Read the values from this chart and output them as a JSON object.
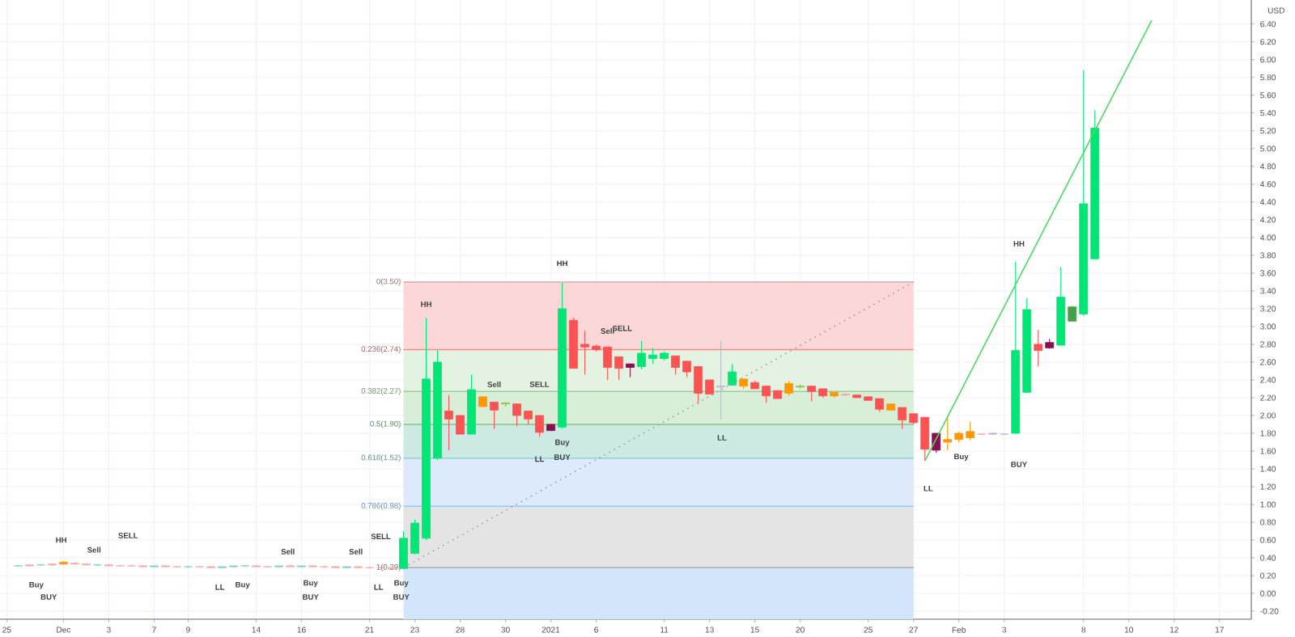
{
  "chart_data": {
    "type": "candlestick",
    "ylabel": "USD",
    "grid": true,
    "ylim": [
      -0.29,
      6.67
    ],
    "yticks": [
      {
        "value": -0.2,
        "label": "-0.20"
      },
      {
        "value": 0,
        "label": "0.00"
      },
      {
        "value": 0.2,
        "label": "0.20"
      },
      {
        "value": 0.4,
        "label": "0.40"
      },
      {
        "value": 0.6,
        "label": "0.60"
      },
      {
        "value": 0.8,
        "label": "0.80"
      },
      {
        "value": 1.0,
        "label": "1.00"
      },
      {
        "value": 1.2,
        "label": "1.20"
      },
      {
        "value": 1.4,
        "label": "1.40"
      },
      {
        "value": 1.6,
        "label": "1.60"
      },
      {
        "value": 1.8,
        "label": "1.80"
      },
      {
        "value": 2.0,
        "label": "2.00"
      },
      {
        "value": 2.2,
        "label": "2.20"
      },
      {
        "value": 2.4,
        "label": "2.40"
      },
      {
        "value": 2.6,
        "label": "2.60"
      },
      {
        "value": 2.8,
        "label": "2.80"
      },
      {
        "value": 3.0,
        "label": "3.00"
      },
      {
        "value": 3.2,
        "label": "3.20"
      },
      {
        "value": 3.4,
        "label": "3.40"
      },
      {
        "value": 3.6,
        "label": "3.60"
      },
      {
        "value": 3.8,
        "label": "3.80"
      },
      {
        "value": 4.0,
        "label": "4.00"
      },
      {
        "value": 4.2,
        "label": "4.20"
      },
      {
        "value": 4.4,
        "label": "4.40"
      },
      {
        "value": 4.6,
        "label": "4.60"
      },
      {
        "value": 4.8,
        "label": "4.80"
      },
      {
        "value": 5.0,
        "label": "5.00"
      },
      {
        "value": 5.2,
        "label": "5.20"
      },
      {
        "value": 5.4,
        "label": "5.40"
      },
      {
        "value": 5.6,
        "label": "5.60"
      },
      {
        "value": 5.8,
        "label": "5.80"
      },
      {
        "value": 6.0,
        "label": "6.00"
      },
      {
        "value": 6.2,
        "label": "6.20"
      },
      {
        "value": 6.4,
        "label": "6.40"
      }
    ],
    "categories": [
      "25",
      null,
      null,
      null,
      null,
      "Dec",
      null,
      null,
      null,
      "3",
      null,
      null,
      null,
      "7",
      null,
      null,
      "9",
      null,
      null,
      null,
      null,
      null,
      "14",
      null,
      null,
      null,
      "16",
      null,
      null,
      null,
      null,
      null,
      "21",
      null,
      null,
      null,
      "23",
      null,
      null,
      null,
      "28",
      null,
      null,
      null,
      "30",
      null,
      null,
      null,
      "2021",
      null,
      null,
      null,
      "6",
      null,
      null,
      null,
      null,
      null,
      "11",
      null,
      null,
      null,
      "13",
      null,
      null,
      null,
      "15",
      null,
      null,
      null,
      "20",
      null,
      null,
      null,
      null,
      null,
      "25",
      null,
      null,
      null,
      "27",
      null,
      null,
      null,
      "Feb",
      null,
      null,
      null,
      "3",
      null,
      null,
      null,
      null,
      null,
      null,
      "8",
      null,
      null,
      null,
      "10",
      null,
      null,
      null,
      "12",
      null,
      null,
      null,
      "17",
      null,
      null
    ],
    "ohlc": [
      null,
      [
        0.31,
        0.32,
        0.3,
        0.31
      ],
      [
        0.31,
        0.32,
        0.3,
        0.32
      ],
      [
        0.32,
        0.33,
        0.31,
        0.32
      ],
      [
        0.32,
        0.33,
        0.31,
        0.33
      ],
      [
        0.33,
        0.36,
        0.32,
        0.35
      ],
      [
        0.34,
        0.35,
        0.32,
        0.33
      ],
      [
        0.33,
        0.34,
        0.32,
        0.32
      ],
      [
        0.32,
        0.33,
        0.31,
        0.32
      ],
      [
        0.32,
        0.33,
        0.31,
        0.31
      ],
      [
        0.31,
        0.32,
        0.3,
        0.31
      ],
      [
        0.31,
        0.32,
        0.3,
        0.31
      ],
      [
        0.31,
        0.32,
        0.3,
        0.3
      ],
      [
        0.3,
        0.31,
        0.29,
        0.31
      ],
      [
        0.31,
        0.32,
        0.3,
        0.3
      ],
      [
        0.3,
        0.31,
        0.29,
        0.3
      ],
      [
        0.3,
        0.31,
        0.29,
        0.3
      ],
      [
        0.3,
        0.31,
        0.29,
        0.3
      ],
      [
        0.3,
        0.31,
        0.29,
        0.29
      ],
      [
        0.29,
        0.3,
        0.28,
        0.3
      ],
      [
        0.3,
        0.31,
        0.29,
        0.31
      ],
      [
        0.31,
        0.32,
        0.3,
        0.31
      ],
      [
        0.31,
        0.32,
        0.3,
        0.3
      ],
      [
        0.3,
        0.31,
        0.29,
        0.3
      ],
      [
        0.3,
        0.31,
        0.29,
        0.31
      ],
      [
        0.31,
        0.32,
        0.3,
        0.3
      ],
      [
        0.3,
        0.31,
        0.29,
        0.31
      ],
      [
        0.31,
        0.32,
        0.3,
        0.3
      ],
      [
        0.3,
        0.31,
        0.29,
        0.3
      ],
      [
        0.3,
        0.31,
        0.29,
        0.29
      ],
      [
        0.29,
        0.3,
        0.28,
        0.3
      ],
      [
        0.3,
        0.31,
        0.29,
        0.29
      ],
      [
        0.29,
        0.3,
        0.28,
        0.29
      ],
      [
        0.29,
        0.3,
        0.28,
        0.29
      ],
      [
        0.29,
        0.3,
        0.27,
        0.28
      ],
      [
        0.28,
        0.7,
        0.27,
        0.62
      ],
      [
        0.45,
        0.83,
        0.44,
        0.79
      ],
      [
        0.62,
        3.1,
        0.6,
        2.41
      ],
      [
        1.52,
        2.73,
        1.5,
        2.6
      ],
      [
        2.05,
        2.23,
        1.61,
        1.96
      ],
      [
        2.0,
        2.0,
        1.79,
        1.79
      ],
      [
        1.79,
        2.46,
        1.79,
        2.29
      ],
      [
        2.21,
        2.21,
        2.1,
        2.1
      ],
      [
        2.15,
        2.15,
        1.85,
        2.06
      ],
      [
        2.13,
        2.15,
        2.1,
        2.14
      ],
      [
        2.13,
        2.13,
        1.88,
        2.0
      ],
      [
        2.05,
        2.05,
        1.9,
        1.96
      ],
      [
        2.0,
        2.0,
        1.76,
        1.81
      ],
      [
        1.9,
        1.9,
        1.83,
        1.83
      ],
      [
        1.87,
        3.49,
        1.85,
        3.2
      ],
      [
        3.07,
        3.1,
        2.53,
        2.53
      ],
      [
        2.8,
        2.95,
        2.46,
        2.77
      ],
      [
        2.78,
        2.8,
        2.72,
        2.74
      ],
      [
        2.77,
        2.77,
        2.4,
        2.54
      ],
      [
        2.66,
        2.66,
        2.4,
        2.53
      ],
      [
        2.58,
        2.58,
        2.43,
        2.54
      ],
      [
        2.55,
        2.84,
        2.52,
        2.7
      ],
      [
        2.64,
        2.76,
        2.58,
        2.68
      ],
      [
        2.64,
        2.72,
        2.62,
        2.7
      ],
      [
        2.67,
        2.67,
        2.46,
        2.54
      ],
      [
        2.61,
        2.61,
        2.43,
        2.49
      ],
      [
        2.55,
        2.55,
        2.13,
        2.25
      ],
      [
        2.4,
        2.4,
        2.24,
        2.24
      ],
      [
        2.32,
        2.84,
        1.95,
        2.33
      ],
      [
        2.34,
        2.58,
        2.34,
        2.49
      ],
      [
        2.41,
        2.41,
        2.3,
        2.33
      ],
      [
        2.37,
        2.39,
        2.3,
        2.3
      ],
      [
        2.33,
        2.33,
        2.14,
        2.22
      ],
      [
        2.28,
        2.28,
        2.19,
        2.19
      ],
      [
        2.36,
        2.39,
        2.22,
        2.25
      ],
      [
        2.33,
        2.35,
        2.3,
        2.32
      ],
      [
        2.33,
        2.33,
        2.16,
        2.27
      ],
      [
        2.3,
        2.3,
        2.2,
        2.22
      ],
      [
        2.26,
        2.26,
        2.2,
        2.22
      ],
      [
        2.24,
        2.25,
        2.22,
        2.23
      ],
      [
        2.23,
        2.23,
        2.2,
        2.2
      ],
      [
        2.21,
        2.21,
        2.17,
        2.17
      ],
      [
        2.19,
        2.19,
        2.04,
        2.07
      ],
      [
        2.13,
        2.13,
        2.06,
        2.06
      ],
      [
        2.09,
        2.09,
        1.85,
        1.95
      ],
      [
        2.02,
        2.02,
        1.9,
        1.92
      ],
      [
        1.98,
        1.98,
        1.49,
        1.62
      ],
      [
        1.61,
        1.8,
        1.58,
        1.8
      ],
      [
        1.73,
        1.98,
        1.61,
        1.7
      ],
      [
        1.73,
        1.82,
        1.7,
        1.8
      ],
      [
        1.75,
        1.93,
        1.72,
        1.82
      ],
      [
        1.79,
        1.8,
        1.78,
        1.79
      ],
      [
        1.79,
        1.81,
        1.78,
        1.8
      ],
      [
        1.79,
        1.8,
        1.78,
        1.79
      ],
      [
        1.8,
        3.73,
        1.79,
        2.73
      ],
      [
        2.26,
        3.32,
        2.25,
        3.19
      ],
      [
        2.8,
        2.96,
        2.55,
        2.73
      ],
      [
        2.76,
        2.86,
        2.75,
        2.82
      ],
      [
        2.79,
        3.67,
        2.78,
        3.33
      ],
      [
        3.06,
        3.23,
        3.06,
        3.22
      ],
      [
        3.14,
        5.88,
        3.12,
        4.38
      ],
      [
        3.76,
        5.43,
        3.76,
        5.23
      ],
      null,
      null,
      null,
      null,
      null,
      null,
      null,
      null,
      null,
      null,
      null,
      null,
      null
    ],
    "colors": [
      null,
      "#80cbc4",
      "#f8a5a5",
      "#80cbc4",
      "#f8a5a5",
      "#ff9800",
      "#f8a5a5",
      "#f8a5a5",
      "#80cbc4",
      "#f8a5a5",
      "#f8a5a5",
      "#f8a5a5",
      "#f8a5a5",
      "#80cbc4",
      "#f8a5a5",
      "#f8a5a5",
      "#80cbc4",
      "#f8a5a5",
      "#f8a5a5",
      "#80cbc4",
      "#80cbc4",
      "#80cbc4",
      "#f8a5a5",
      "#f8a5a5",
      "#80cbc4",
      "#f8a5a5",
      "#80cbc4",
      "#f8a5a5",
      "#f8a5a5",
      "#f8a5a5",
      "#80cbc4",
      "#f8a5a5",
      "#f8a5a5",
      "#f8a5a5",
      "#f8a5a5",
      "#00e676",
      "#00e676",
      "#00e676",
      "#00e676",
      "#ff5252",
      "#ff5252",
      "#00e676",
      "#ff9800",
      "#ff5252",
      "#8bc34a",
      "#ff5252",
      "#ff5252",
      "#ff5252",
      "#880e4f",
      "#00e676",
      "#ff5252",
      "#ff5252",
      "#ff5252",
      "#ff5252",
      "#ff5252",
      "#880e4f",
      "#00e676",
      "#00e676",
      "#00e676",
      "#ff5252",
      "#ff5252",
      "#ff5252",
      "#ff5252",
      "#b0bec5",
      "#00e676",
      "#ff9800",
      "#ff5252",
      "#ff5252",
      "#ff5252",
      "#ff9800",
      "#8bc34a",
      "#ff5252",
      "#ff5252",
      "#ff9800",
      "#f8a5a5",
      "#ff5252",
      "#ff5252",
      "#ff5252",
      "#ff9800",
      "#ff5252",
      "#ff5252",
      "#ff5252",
      "#880e4f",
      "#ff9800",
      "#ff9800",
      "#ff9800",
      "#f8a5a5",
      "#b0bec5",
      "#b0bec5",
      "#00e676",
      "#00e676",
      "#ff5252",
      "#880e4f",
      "#00e676",
      "#43a047",
      "#00e676",
      "#00e676",
      null,
      null,
      null,
      null,
      null,
      null,
      null,
      null,
      null,
      null,
      null,
      null,
      null
    ],
    "series": [
      {
        "type": "line",
        "values": [
          null,
          null,
          null,
          null,
          null,
          null,
          null,
          null,
          null,
          null,
          null,
          null,
          null,
          null,
          null,
          null,
          null,
          null,
          null,
          null,
          null,
          null,
          null,
          null,
          null,
          null,
          null,
          null,
          null,
          null,
          null,
          null,
          null,
          null,
          null,
          0.29,
          null,
          null,
          null,
          null,
          null,
          null,
          null,
          null,
          null,
          null,
          null,
          null,
          null,
          null,
          null,
          null,
          null,
          null,
          null,
          null,
          null,
          null,
          null,
          null,
          null,
          null,
          null,
          null,
          null,
          null,
          null,
          null,
          null,
          null,
          null,
          null,
          null,
          null,
          null,
          null,
          null,
          null,
          null,
          null,
          3.5,
          null,
          null,
          null,
          null,
          null,
          null,
          null,
          null,
          null,
          null,
          null,
          null,
          null,
          null,
          null,
          null,
          null,
          null,
          null,
          null,
          null,
          null,
          null,
          null,
          null,
          null,
          null,
          null,
          null
        ],
        "color": "#9e9e9e",
        "line_style": "dotted"
      },
      {
        "type": "line",
        "values": [
          null,
          null,
          null,
          null,
          null,
          null,
          null,
          null,
          null,
          null,
          null,
          null,
          null,
          null,
          null,
          null,
          null,
          null,
          null,
          null,
          null,
          null,
          null,
          null,
          null,
          null,
          null,
          null,
          null,
          null,
          null,
          null,
          null,
          null,
          null,
          null,
          null,
          null,
          null,
          null,
          null,
          null,
          null,
          null,
          null,
          null,
          null,
          null,
          null,
          null,
          null,
          null,
          null,
          null,
          null,
          null,
          null,
          null,
          null,
          null,
          null,
          null,
          null,
          null,
          null,
          null,
          null,
          null,
          null,
          null,
          null,
          null,
          null,
          null,
          null,
          null,
          null,
          null,
          null,
          null,
          null,
          1.49,
          null,
          null,
          null,
          null,
          null,
          null,
          null,
          null,
          null,
          null,
          null,
          null,
          null,
          null,
          null,
          null,
          null,
          null,
          null,
          6.44,
          null,
          null,
          null,
          null,
          null,
          null,
          null,
          null
        ],
        "color": "#4cd964",
        "line_style": "solid"
      }
    ],
    "bands": [
      {
        "axis": "y",
        "from": 2.74,
        "to": 3.5,
        "color": "#fbd7d7"
      },
      {
        "axis": "y",
        "from": 2.27,
        "to": 2.74,
        "color": "#e4f3e1"
      },
      {
        "axis": "y",
        "from": 1.9,
        "to": 2.27,
        "color": "#d9eed6"
      },
      {
        "axis": "y",
        "from": 1.52,
        "to": 1.9,
        "color": "#cde9e3"
      },
      {
        "axis": "y",
        "from": 0.98,
        "to": 1.52,
        "color": "#dceafb"
      },
      {
        "axis": "y",
        "from": 0.29,
        "to": 0.98,
        "color": "#e4e4e4"
      },
      {
        "axis": "y",
        "from": -0.29,
        "to": 0.29,
        "color": "#d3e5fb"
      }
    ],
    "ref_lines": [
      {
        "axis": "y",
        "value": 3.5,
        "label": "0(3.50)",
        "color": "#c9a0a0"
      },
      {
        "axis": "y",
        "value": 2.74,
        "label": "0.236(2.74)",
        "color": "#f28b82"
      },
      {
        "axis": "y",
        "value": 2.27,
        "label": "0.382(2.27)",
        "color": "#9ccc9c"
      },
      {
        "axis": "y",
        "value": 1.9,
        "label": "0.5(1.90)",
        "color": "#81c784"
      },
      {
        "axis": "y",
        "value": 1.52,
        "label": "0.618(1.52)",
        "color": "#80cbc4"
      },
      {
        "axis": "y",
        "value": 0.98,
        "label": "0.786(0.98)",
        "color": "#90caf9"
      },
      {
        "axis": "y",
        "value": 0.29,
        "label": "1(0.29)",
        "color": "#9e9e9e"
      }
    ],
    "annotations": [
      "HH",
      "Buy",
      "BUY",
      "Sell",
      "SELL",
      "LL",
      "Buy",
      "Sell",
      "Buy",
      "BUY",
      "Sell",
      "SELL",
      "LL",
      "Buy",
      "BUY",
      "HH",
      "Sell",
      "SELL",
      "LL",
      "Buy",
      "BUY",
      "HH",
      "Sell",
      "SELL",
      "LL",
      "LL",
      "Buy",
      "HH",
      "BUY"
    ]
  }
}
